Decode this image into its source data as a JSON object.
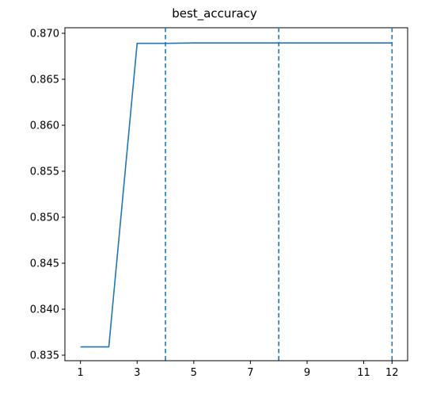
{
  "chart_data": {
    "type": "line",
    "title": "best_accuracy",
    "xlabel": "",
    "ylabel": "",
    "x": [
      1,
      2,
      3,
      4,
      5,
      6,
      7,
      8,
      9,
      10,
      11,
      12
    ],
    "series": [
      {
        "values": [
          0.8359,
          0.8359,
          0.8689,
          0.8689,
          0.86895,
          0.86895,
          0.86895,
          0.86895,
          0.86895,
          0.86895,
          0.86895,
          0.86895
        ],
        "color": "#1f77b4"
      }
    ],
    "vlines": [
      4,
      8,
      12
    ],
    "vline_style": "dashed",
    "xticks": [
      1,
      3,
      5,
      7,
      9,
      11,
      12
    ],
    "yticks": [
      0.835,
      0.84,
      0.845,
      0.85,
      0.855,
      0.86,
      0.865,
      0.87
    ],
    "xlim": [
      0.45,
      12.55
    ],
    "ylim": [
      0.8344,
      0.8706
    ],
    "grid": false,
    "legend": "none"
  }
}
